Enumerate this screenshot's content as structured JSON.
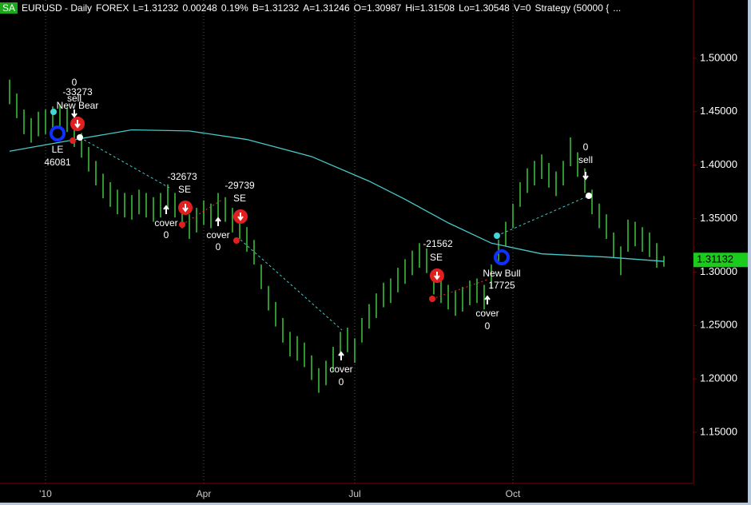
{
  "header": {
    "badge": "SA",
    "symbol": "EURUSD - Daily",
    "market": "FOREX",
    "fields": [
      "L=1.31232",
      "0.00248",
      "0.19%",
      "B=1.31232",
      "A=1.31246",
      "O=1.30987",
      "Hi=1.31508",
      "Lo=1.30548",
      "V=0",
      "Strategy (50000 {",
      "..."
    ]
  },
  "chart_data": {
    "type": "ohlc",
    "categories": [
      null,
      null,
      null,
      null,
      null,
      "'10",
      null,
      null,
      null,
      null,
      null,
      null,
      null,
      null,
      null,
      null,
      null,
      null,
      null,
      null,
      null,
      null,
      null,
      null,
      null,
      null,
      null,
      "Apr",
      null,
      null,
      null,
      null,
      null,
      null,
      null,
      null,
      null,
      null,
      null,
      null,
      null,
      null,
      null,
      null,
      null,
      null,
      null,
      null,
      "Jul",
      null,
      null,
      null,
      null,
      null,
      null,
      null,
      null,
      null,
      null,
      null,
      null,
      null,
      null,
      null,
      null,
      null,
      null,
      null,
      null,
      null,
      "Oct",
      null,
      null,
      null,
      null,
      null,
      null,
      null,
      null,
      null,
      null,
      null,
      null,
      null,
      null,
      null,
      null,
      null,
      null,
      null,
      null,
      null
    ],
    "high": [
      1.48,
      1.467,
      1.452,
      1.444,
      1.45,
      1.452,
      1.455,
      1.457,
      1.454,
      1.44,
      1.43,
      1.417,
      1.404,
      1.392,
      1.384,
      1.377,
      1.374,
      1.372,
      1.377,
      1.374,
      1.37,
      1.374,
      1.382,
      1.374,
      1.364,
      1.354,
      1.36,
      1.367,
      1.364,
      1.374,
      1.37,
      1.36,
      1.354,
      1.342,
      1.33,
      1.307,
      1.287,
      1.272,
      1.257,
      1.244,
      1.24,
      1.234,
      1.222,
      1.21,
      1.217,
      1.23,
      1.244,
      1.248,
      1.238,
      1.257,
      1.27,
      1.28,
      1.29,
      1.294,
      1.304,
      1.312,
      1.32,
      1.327,
      1.322,
      1.302,
      1.294,
      1.288,
      1.282,
      1.286,
      1.292,
      1.294,
      1.288,
      1.307,
      1.33,
      1.347,
      1.364,
      1.384,
      1.397,
      1.404,
      1.41,
      1.402,
      1.394,
      1.404,
      1.426,
      1.412,
      1.397,
      1.377,
      1.364,
      1.354,
      1.337,
      1.324,
      1.349,
      1.347,
      1.342,
      1.337,
      1.327,
      1.315
    ],
    "low": [
      1.457,
      1.444,
      1.429,
      1.421,
      1.427,
      1.429,
      1.432,
      1.434,
      1.431,
      1.417,
      1.407,
      1.394,
      1.381,
      1.369,
      1.361,
      1.354,
      1.351,
      1.349,
      1.354,
      1.351,
      1.347,
      1.351,
      1.359,
      1.351,
      1.341,
      1.331,
      1.337,
      1.344,
      1.341,
      1.351,
      1.347,
      1.337,
      1.331,
      1.319,
      1.307,
      1.284,
      1.264,
      1.249,
      1.234,
      1.221,
      1.217,
      1.211,
      1.199,
      1.187,
      1.194,
      1.207,
      1.221,
      1.225,
      1.215,
      1.234,
      1.247,
      1.257,
      1.267,
      1.271,
      1.281,
      1.289,
      1.297,
      1.304,
      1.299,
      1.279,
      1.271,
      1.265,
      1.259,
      1.263,
      1.269,
      1.271,
      1.265,
      1.284,
      1.307,
      1.324,
      1.341,
      1.361,
      1.374,
      1.381,
      1.387,
      1.379,
      1.371,
      1.381,
      1.399,
      1.389,
      1.374,
      1.354,
      1.341,
      1.331,
      1.314,
      1.297,
      1.319,
      1.324,
      1.319,
      1.314,
      1.304,
      1.305
    ],
    "color": "#3cc83c",
    "average": {
      "color": "#48c8c8",
      "x": [
        0,
        10,
        17,
        25,
        33,
        42,
        50,
        55,
        61,
        67,
        74,
        83,
        91
      ],
      "values": [
        1.413,
        1.425,
        1.433,
        1.432,
        1.424,
        1.408,
        1.385,
        1.368,
        1.346,
        1.327,
        1.317,
        1.314,
        1.31
      ]
    },
    "ylim": [
      1.1022,
      1.5545
    ],
    "yticks": [
      {
        "value": 1.5,
        "label": "1.50000"
      },
      {
        "value": 1.45,
        "label": "1.45000"
      },
      {
        "value": 1.4,
        "label": "1.40000"
      },
      {
        "value": 1.35,
        "label": "1.35000"
      },
      {
        "value": 1.3,
        "label": "1.30000"
      },
      {
        "value": 1.25,
        "label": "1.25000"
      },
      {
        "value": 1.2,
        "label": "1.20000"
      },
      {
        "value": 1.15,
        "label": "1.15000"
      }
    ],
    "last_price": 1.31132,
    "annotations": [
      "0",
      "-33273",
      "sell",
      "New Bear",
      "LE",
      "46081",
      "-32673",
      "SE",
      "cover",
      "0",
      "-29739",
      "SE",
      "cover",
      "0",
      "cover",
      "0",
      "-21562",
      "SE",
      "New Bull",
      "17725",
      "cover",
      "0",
      "0",
      "sell"
    ]
  }
}
